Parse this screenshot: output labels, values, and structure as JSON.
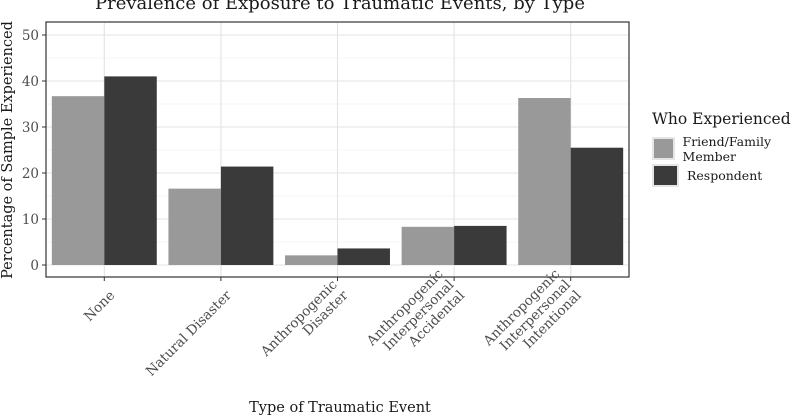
{
  "chart_data": {
    "type": "bar",
    "title": "Prevalence of Exposure to Traumatic Events, by Type",
    "xlabel": "Type of Traumatic Event",
    "ylabel": "Percentage of Sample Experienced",
    "categories": [
      [
        "None"
      ],
      [
        "Natural Disaster"
      ],
      [
        "Anthropogenic",
        "Disaster"
      ],
      [
        "Anthropogenic",
        "Interpersonal",
        "Accidental"
      ],
      [
        "Anthropogenic",
        "Interpersonal",
        "Intentional"
      ]
    ],
    "series": [
      {
        "name": "Friend/Family Member",
        "color": "#999999",
        "values": [
          36.7,
          16.6,
          2.1,
          8.3,
          36.3
        ]
      },
      {
        "name": "Respondent",
        "color": "#3a3a3a",
        "values": [
          41.0,
          21.4,
          3.6,
          8.5,
          25.5
        ]
      }
    ],
    "ylim": [
      0,
      50
    ],
    "yticks": [
      0,
      10,
      20,
      30,
      40,
      50
    ],
    "legend_title": "Who Experienced",
    "legend_position": "right",
    "grid": true
  }
}
